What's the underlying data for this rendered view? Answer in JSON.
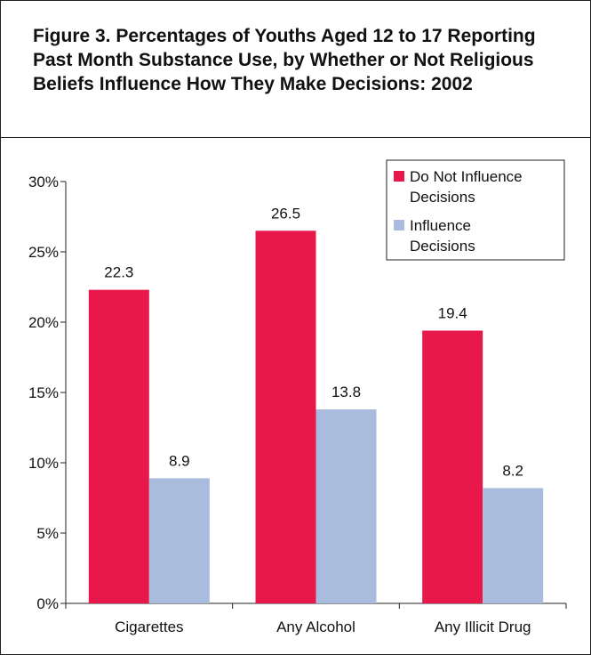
{
  "chart_data": {
    "type": "bar",
    "title": "Figure 3. Percentages of Youths Aged 12 to 17 Reporting Past Month Substance Use, by Whether or Not Religious Beliefs Influence How They Make Decisions:  2002",
    "categories": [
      "Cigarettes",
      "Any Alcohol",
      "Any Illicit Drug"
    ],
    "series": [
      {
        "name": "Do Not Influence Decisions",
        "legend_lines": [
          "Do Not Influence",
          "Decisions"
        ],
        "values": [
          22.3,
          26.5,
          19.4
        ],
        "labels": [
          "22.3",
          "26.5",
          "19.4"
        ],
        "color": "#E8194A"
      },
      {
        "name": "Influence Decisions",
        "legend_lines": [
          "Influence",
          "Decisions"
        ],
        "values": [
          8.9,
          13.8,
          8.2
        ],
        "labels": [
          "8.9",
          "13.8",
          "8.2"
        ],
        "color": "#A9BCDE"
      }
    ],
    "yticks": [
      0,
      5,
      10,
      15,
      20,
      25,
      30
    ],
    "ytick_labels": [
      "0%",
      "5%",
      "10%",
      "15%",
      "20%",
      "25%",
      "30%"
    ],
    "ylim": [
      0,
      30
    ],
    "xlabel": "",
    "ylabel": "",
    "grid": false,
    "legend_position": "top-right"
  }
}
